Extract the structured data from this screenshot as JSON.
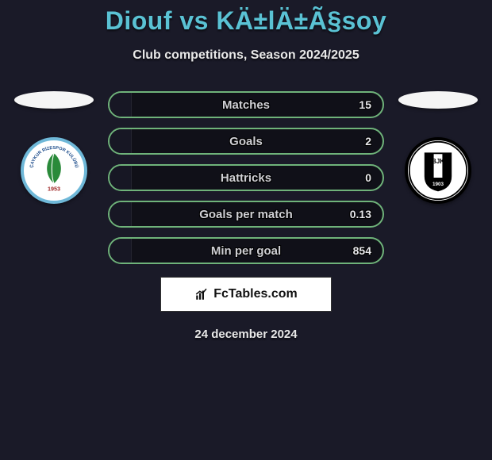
{
  "title": "Diouf vs KÄ±lÄ±Ã§soy",
  "subtitle": "Club competitions, Season 2024/2025",
  "date": "24 december 2024",
  "brand": {
    "text": "FcTables.com"
  },
  "left_club": {
    "label": "ÇAYKUR RİZESPOR",
    "year": "1953",
    "border_color": "#6fb8d8",
    "bg_color": "#ffffff",
    "text_color": "#2a7a3a"
  },
  "right_club": {
    "label": "BJK 1903",
    "border_color": "#000000",
    "bg_color": "#ffffff",
    "text_color": "#000000"
  },
  "bars": {
    "border_color": "#6fb37a",
    "bg_color": "#101018",
    "fill_color": "#171724",
    "label_color": "#cfcfd4",
    "value_color": "#e8e8ec",
    "height": 34,
    "radius": 18,
    "items": [
      {
        "label": "Matches",
        "value": "15",
        "fill_pct": 8
      },
      {
        "label": "Goals",
        "value": "2",
        "fill_pct": 8
      },
      {
        "label": "Hattricks",
        "value": "0",
        "fill_pct": 8
      },
      {
        "label": "Goals per match",
        "value": "0.13",
        "fill_pct": 8
      },
      {
        "label": "Min per goal",
        "value": "854",
        "fill_pct": 8
      }
    ]
  },
  "colors": {
    "page_bg": "#1a1a28",
    "title_color": "#5ac2d4",
    "subtitle_color": "#e8e8e8",
    "flag_bg": "#f5f5f5"
  }
}
